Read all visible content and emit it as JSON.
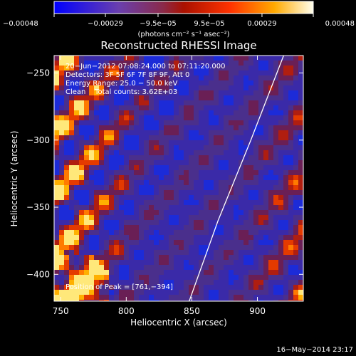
{
  "chart_data": {
    "type": "heatmap",
    "title": "Reconstructed RHESSI Image",
    "xlabel": "Heliocentric X (arcsec)",
    "ylabel": "Heliocentric Y (arcsec)",
    "xlim": [
      745,
      935
    ],
    "ylim": [
      -420,
      -237
    ],
    "x_ticks": [
      750,
      800,
      850,
      900
    ],
    "y_ticks": [
      -250,
      -300,
      -350,
      -400
    ],
    "x_tick_labels": [
      "750",
      "800",
      "850",
      "900"
    ],
    "y_tick_labels": [
      "−250",
      "−300",
      "−350",
      "−400"
    ],
    "colorbar": {
      "min": -0.00048,
      "max": 0.00048,
      "tick_values": [
        -0.00048,
        -0.00029,
        -9.5e-05,
        9.5e-05,
        0.00029,
        0.00048
      ],
      "tick_labels": [
        "−0.00048",
        "−0.00029",
        "−9.5e−05",
        "9.5e−05",
        "0.00029",
        "0.00048"
      ],
      "unit_label": "(photons cm⁻² s⁻¹ asec⁻²)",
      "colors": [
        "#0000ff",
        "#6a3fae",
        "#8a2a4a",
        "#cc2200",
        "#ff8800",
        "#ffff66",
        "#ffffff"
      ]
    },
    "annotations": [
      "20−Jun−2012 07:08:24.000 to 07:11:20.000",
      "Detectors: 3F 5F 6F 7F 8F 9F, Att 0",
      "Energy Range: 25.0 − 50.0 keV",
      "Clean    Total counts: 3.62E+03"
    ],
    "peak_label": "Position of Peak = [761,−394]",
    "peak": [
      761,
      -394
    ],
    "limb_curve": [
      [
        848,
        -420
      ],
      [
        870,
        -360
      ],
      [
        895,
        -300
      ],
      [
        920,
        -237
      ]
    ]
  },
  "footer": {
    "timestamp": "16−May−2014 23:17"
  }
}
